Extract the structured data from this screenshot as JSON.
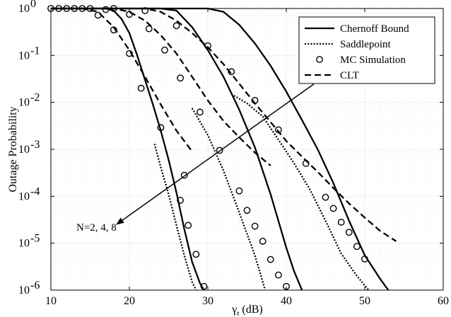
{
  "chart_data": {
    "type": "line",
    "title": "",
    "xlabel_main": "γ",
    "xlabel_sub": "t",
    "xlabel_unit": " (dB)",
    "ylabel": "Outage Probability",
    "xlim": [
      10,
      60
    ],
    "ylim": [
      1e-06,
      1
    ],
    "yscale": "log",
    "grid": true,
    "legend_position": "top-right",
    "x_ticks": [
      10,
      20,
      30,
      40,
      50,
      60
    ],
    "x_tick_labels": [
      "10",
      "20",
      "30",
      "40",
      "50",
      "60"
    ],
    "y_ticks": [
      1e-06,
      1e-05,
      0.0001,
      0.001,
      0.01,
      0.1,
      1
    ],
    "y_tick_labels": [
      {
        "base": "10",
        "exp": "-6"
      },
      {
        "base": "10",
        "exp": "-5"
      },
      {
        "base": "10",
        "exp": "-4"
      },
      {
        "base": "10",
        "exp": "-3"
      },
      {
        "base": "10",
        "exp": "-2"
      },
      {
        "base": "10",
        "exp": "-1"
      },
      {
        "base": "10",
        "exp": "0"
      }
    ],
    "legend": [
      {
        "label": "Chernoff Bound",
        "style": "solid"
      },
      {
        "label": "Saddlepoint",
        "style": "dotted"
      },
      {
        "label": "MC Simulation",
        "style": "marker"
      },
      {
        "label": "CLT",
        "style": "dashed"
      }
    ],
    "annotation": {
      "text": "N=2, 4, 8",
      "arrow_from": [
        43.5,
        0.0245
      ],
      "arrow_to": [
        18.3,
        2.47e-05
      ]
    },
    "series": [
      {
        "style": "solid",
        "group": "N=2",
        "points": [
          [
            10,
            1
          ],
          [
            14,
            1
          ],
          [
            17,
            1
          ],
          [
            18,
            0.9
          ],
          [
            19,
            0.6
          ],
          [
            20,
            0.3
          ],
          [
            21,
            0.1
          ],
          [
            22,
            0.03
          ],
          [
            23,
            0.009
          ],
          [
            24,
            0.0025
          ],
          [
            25,
            0.0006
          ],
          [
            26,
            0.00012
          ],
          [
            27,
            2e-05
          ],
          [
            28,
            4e-06
          ],
          [
            29,
            1.4e-06
          ],
          [
            29.5,
            1e-06
          ]
        ]
      },
      {
        "style": "solid",
        "group": "N=4",
        "points": [
          [
            10,
            1
          ],
          [
            24,
            1
          ],
          [
            26,
            0.9
          ],
          [
            28,
            0.4
          ],
          [
            30,
            0.13
          ],
          [
            32,
            0.035
          ],
          [
            34,
            0.007
          ],
          [
            36,
            0.0011
          ],
          [
            38,
            0.00011
          ],
          [
            40,
            8e-06
          ],
          [
            41,
            2.5e-06
          ],
          [
            42,
            1e-06
          ]
        ]
      },
      {
        "style": "solid",
        "group": "N=8",
        "points": [
          [
            10,
            1
          ],
          [
            30,
            1
          ],
          [
            32,
            0.85
          ],
          [
            34,
            0.45
          ],
          [
            36,
            0.18
          ],
          [
            38,
            0.06
          ],
          [
            40,
            0.017
          ],
          [
            42,
            0.0042
          ],
          [
            44,
            0.001
          ],
          [
            46,
            0.00019
          ],
          [
            48,
            3e-05
          ],
          [
            50,
            5.5e-06
          ],
          [
            52,
            1.7e-06
          ],
          [
            53,
            1e-06
          ]
        ]
      },
      {
        "style": "dotted",
        "group": "N=2",
        "points": [
          [
            23.2,
            0.0013
          ],
          [
            24,
            0.00042
          ],
          [
            25,
            0.00011
          ],
          [
            26,
            2.4e-05
          ],
          [
            27,
            5.5e-06
          ],
          [
            28,
            1.5e-06
          ],
          [
            28.5,
            1e-06
          ]
        ]
      },
      {
        "style": "dotted",
        "group": "N=4",
        "points": [
          [
            28,
            0.0075
          ],
          [
            30,
            0.002
          ],
          [
            32,
            0.00035
          ],
          [
            34,
            4.5e-05
          ],
          [
            36,
            5.5e-06
          ],
          [
            37,
            1.5e-06
          ],
          [
            37.3,
            1e-06
          ]
        ]
      },
      {
        "style": "dotted",
        "group": "N=8",
        "points": [
          [
            33,
            0.015
          ],
          [
            35,
            0.0095
          ],
          [
            37,
            0.005
          ],
          [
            39,
            0.0016
          ],
          [
            41,
            0.0005
          ],
          [
            43,
            0.00014
          ],
          [
            45,
            3e-05
          ],
          [
            47,
            6e-06
          ],
          [
            49,
            2e-06
          ],
          [
            50.5,
            1e-06
          ]
        ]
      },
      {
        "style": "dashed",
        "group": "N=2",
        "points": [
          [
            10,
            1
          ],
          [
            14,
            1
          ],
          [
            16,
            0.85
          ],
          [
            18,
            0.4
          ],
          [
            20,
            0.13
          ],
          [
            22,
            0.035
          ],
          [
            24,
            0.009
          ],
          [
            26,
            0.0025
          ],
          [
            28,
            0.0009
          ]
        ]
      },
      {
        "style": "dashed",
        "group": "N=4",
        "points": [
          [
            10,
            1
          ],
          [
            18,
            1
          ],
          [
            20,
            0.85
          ],
          [
            22,
            0.55
          ],
          [
            24,
            0.27
          ],
          [
            26,
            0.11
          ],
          [
            28,
            0.035
          ],
          [
            30,
            0.011
          ],
          [
            32,
            0.004
          ],
          [
            34,
            0.0018
          ],
          [
            36,
            0.00085
          ],
          [
            38,
            0.00045
          ]
        ]
      },
      {
        "style": "dashed",
        "group": "N=8",
        "points": [
          [
            10,
            1
          ],
          [
            22,
            1
          ],
          [
            24,
            0.85
          ],
          [
            26,
            0.55
          ],
          [
            28,
            0.3
          ],
          [
            30,
            0.15
          ],
          [
            32,
            0.065
          ],
          [
            34,
            0.025
          ],
          [
            36,
            0.0095
          ],
          [
            38,
            0.0038
          ],
          [
            40,
            0.0015
          ],
          [
            42,
            0.0007
          ],
          [
            44,
            0.00033
          ],
          [
            46,
            0.00015
          ],
          [
            48,
            7e-05
          ],
          [
            50,
            3.5e-05
          ],
          [
            52,
            1.8e-05
          ],
          [
            54,
            1.1e-05
          ]
        ]
      },
      {
        "style": "marker",
        "group": "N=2",
        "points": [
          [
            10,
            1
          ],
          [
            11,
            1
          ],
          [
            12,
            1
          ],
          [
            13,
            1
          ],
          [
            14,
            1
          ],
          [
            15,
            1
          ],
          [
            16,
            0.72
          ],
          [
            17,
            0.95
          ],
          [
            18,
            0.35
          ],
          [
            20,
            0.11
          ],
          [
            21.5,
            0.02
          ],
          [
            24,
            0.0029
          ],
          [
            27,
            0.00028
          ]
        ]
      },
      {
        "style": "marker",
        "group": "N=2 tail",
        "points": [
          [
            26.5,
            8.2e-05
          ],
          [
            27.5,
            2.4e-05
          ],
          [
            28.5,
            5.8e-06
          ],
          [
            29.5,
            1.2e-06
          ]
        ]
      },
      {
        "style": "marker",
        "group": "N=4",
        "points": [
          [
            18,
            1
          ],
          [
            20,
            0.75
          ],
          [
            22.5,
            0.37
          ],
          [
            24.5,
            0.13
          ],
          [
            26.5,
            0.033
          ],
          [
            29,
            0.0062
          ],
          [
            31.5,
            0.00095
          ]
        ]
      },
      {
        "style": "marker",
        "group": "N=4 tail",
        "points": [
          [
            34,
            0.00013
          ],
          [
            35,
            5e-05
          ],
          [
            36,
            2.3e-05
          ],
          [
            37,
            1.1e-05
          ],
          [
            38,
            4.5e-06
          ],
          [
            39,
            2.1e-06
          ],
          [
            40,
            1.2e-06
          ]
        ]
      },
      {
        "style": "marker",
        "group": "N=8",
        "points": [
          [
            22,
            0.9
          ],
          [
            26,
            0.43
          ],
          [
            30,
            0.16
          ],
          [
            33,
            0.045
          ],
          [
            36,
            0.011
          ],
          [
            39,
            0.0026
          ],
          [
            42.5,
            0.0005
          ]
        ]
      },
      {
        "style": "marker",
        "group": "N=8 tail",
        "points": [
          [
            45,
            9.5e-05
          ],
          [
            46,
            5.5e-05
          ],
          [
            47,
            2.8e-05
          ],
          [
            48,
            1.7e-05
          ],
          [
            49,
            8.5e-06
          ],
          [
            50,
            4.6e-06
          ]
        ]
      }
    ]
  }
}
